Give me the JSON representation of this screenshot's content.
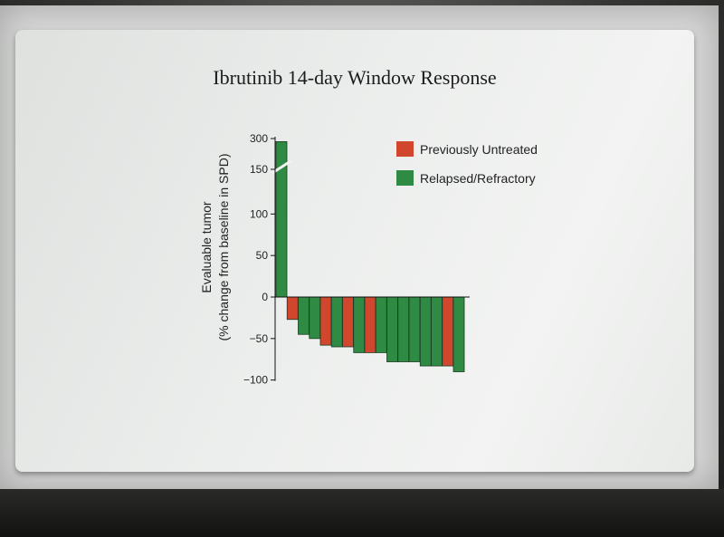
{
  "slide": {
    "title": "Ibrutinib 14-day Window Response"
  },
  "chart_data": {
    "type": "bar",
    "title": "Ibrutinib 14-day Window Response",
    "ylabel_line1": "Evaluable tumor",
    "ylabel_line2": "(% change from baseline in SPD)",
    "xlabel": "",
    "ylim": [
      -100,
      300
    ],
    "y_ticks": [
      300,
      150,
      100,
      50,
      0,
      -50,
      -100
    ],
    "y_tick_labels": [
      "300",
      "150",
      "100",
      "50",
      "0",
      "−50",
      "−100"
    ],
    "axis_break": {
      "from": 100,
      "to": 150
    },
    "grid": false,
    "legend_position": "top-right",
    "legend": [
      {
        "name": "Previously Untreated",
        "color": "#d0472e"
      },
      {
        "name": "Relapsed/Refractory",
        "color": "#2f8a43"
      }
    ],
    "bars": [
      {
        "value": 285,
        "group": "Relapsed/Refractory"
      },
      {
        "value": -27,
        "group": "Previously Untreated"
      },
      {
        "value": -45,
        "group": "Relapsed/Refractory"
      },
      {
        "value": -50,
        "group": "Relapsed/Refractory"
      },
      {
        "value": -58,
        "group": "Previously Untreated"
      },
      {
        "value": -60,
        "group": "Relapsed/Refractory"
      },
      {
        "value": -60,
        "group": "Previously Untreated"
      },
      {
        "value": -67,
        "group": "Relapsed/Refractory"
      },
      {
        "value": -67,
        "group": "Previously Untreated"
      },
      {
        "value": -67,
        "group": "Relapsed/Refractory"
      },
      {
        "value": -78,
        "group": "Relapsed/Refractory"
      },
      {
        "value": -78,
        "group": "Relapsed/Refractory"
      },
      {
        "value": -78,
        "group": "Relapsed/Refractory"
      },
      {
        "value": -83,
        "group": "Relapsed/Refractory"
      },
      {
        "value": -83,
        "group": "Relapsed/Refractory"
      },
      {
        "value": -83,
        "group": "Previously Untreated"
      },
      {
        "value": -90,
        "group": "Relapsed/Refractory"
      }
    ]
  }
}
